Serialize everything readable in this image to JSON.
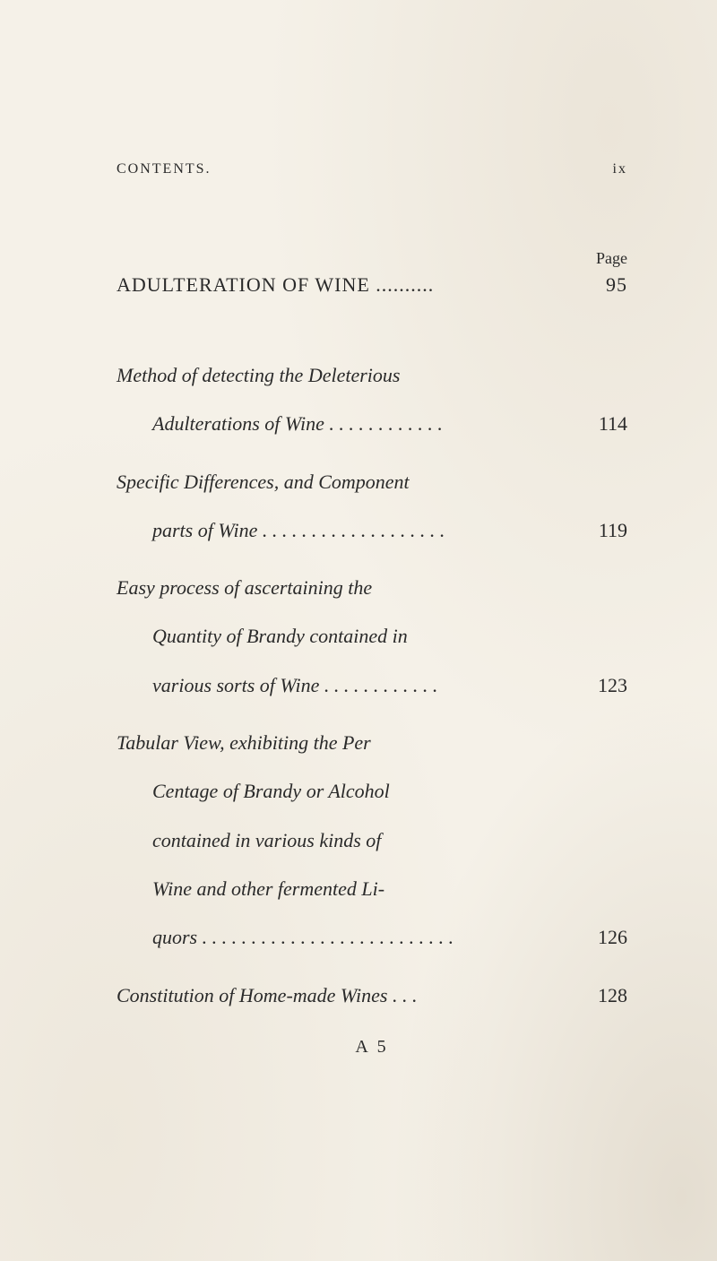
{
  "header": {
    "title": "CONTENTS.",
    "roman": "ix"
  },
  "pageLabel": "Page",
  "sectionTitle": {
    "text": "ADULTERATION OF WINE ..........",
    "page": "95"
  },
  "entries": [
    {
      "lines": [
        {
          "text": "Method of detecting the Deleterious",
          "indent": false
        },
        {
          "text": "Adulterations of Wine . . . . . . . . . . . .",
          "indent": true,
          "page": "114"
        }
      ]
    },
    {
      "lines": [
        {
          "text": "Specific Differences, and Component",
          "indent": false
        },
        {
          "text": "parts of Wine . . . . . . . . . . . . . . . . . . .",
          "indent": true,
          "page": "119"
        }
      ]
    },
    {
      "lines": [
        {
          "text": "Easy process of ascertaining the",
          "indent": false
        },
        {
          "text": "Quantity of Brandy contained in",
          "indent": true
        },
        {
          "text": "various sorts of Wine . . . . . . . . . . . .",
          "indent": true,
          "page": "123"
        }
      ]
    },
    {
      "lines": [
        {
          "text": "Tabular View, exhibiting the Per",
          "indent": false
        },
        {
          "text": "Centage of Brandy or Alcohol",
          "indent": true
        },
        {
          "text": "contained in various kinds of",
          "indent": true
        },
        {
          "text": "Wine and other fermented Li-",
          "indent": true
        },
        {
          "text": "quors . . . . . . . . . . . . . . . . . . . . . . . . . .",
          "indent": true,
          "page": "126"
        }
      ]
    },
    {
      "lines": [
        {
          "text": "Constitution of Home-made Wines . . .",
          "indent": false,
          "page": "128"
        }
      ]
    }
  ],
  "signature": "A 5",
  "colors": {
    "paper": "#f5f1e8",
    "ink": "#2a2a2a"
  },
  "typography": {
    "body_fontsize_pt": 16,
    "header_fontsize_pt": 15,
    "font_family": "Georgia serif"
  }
}
